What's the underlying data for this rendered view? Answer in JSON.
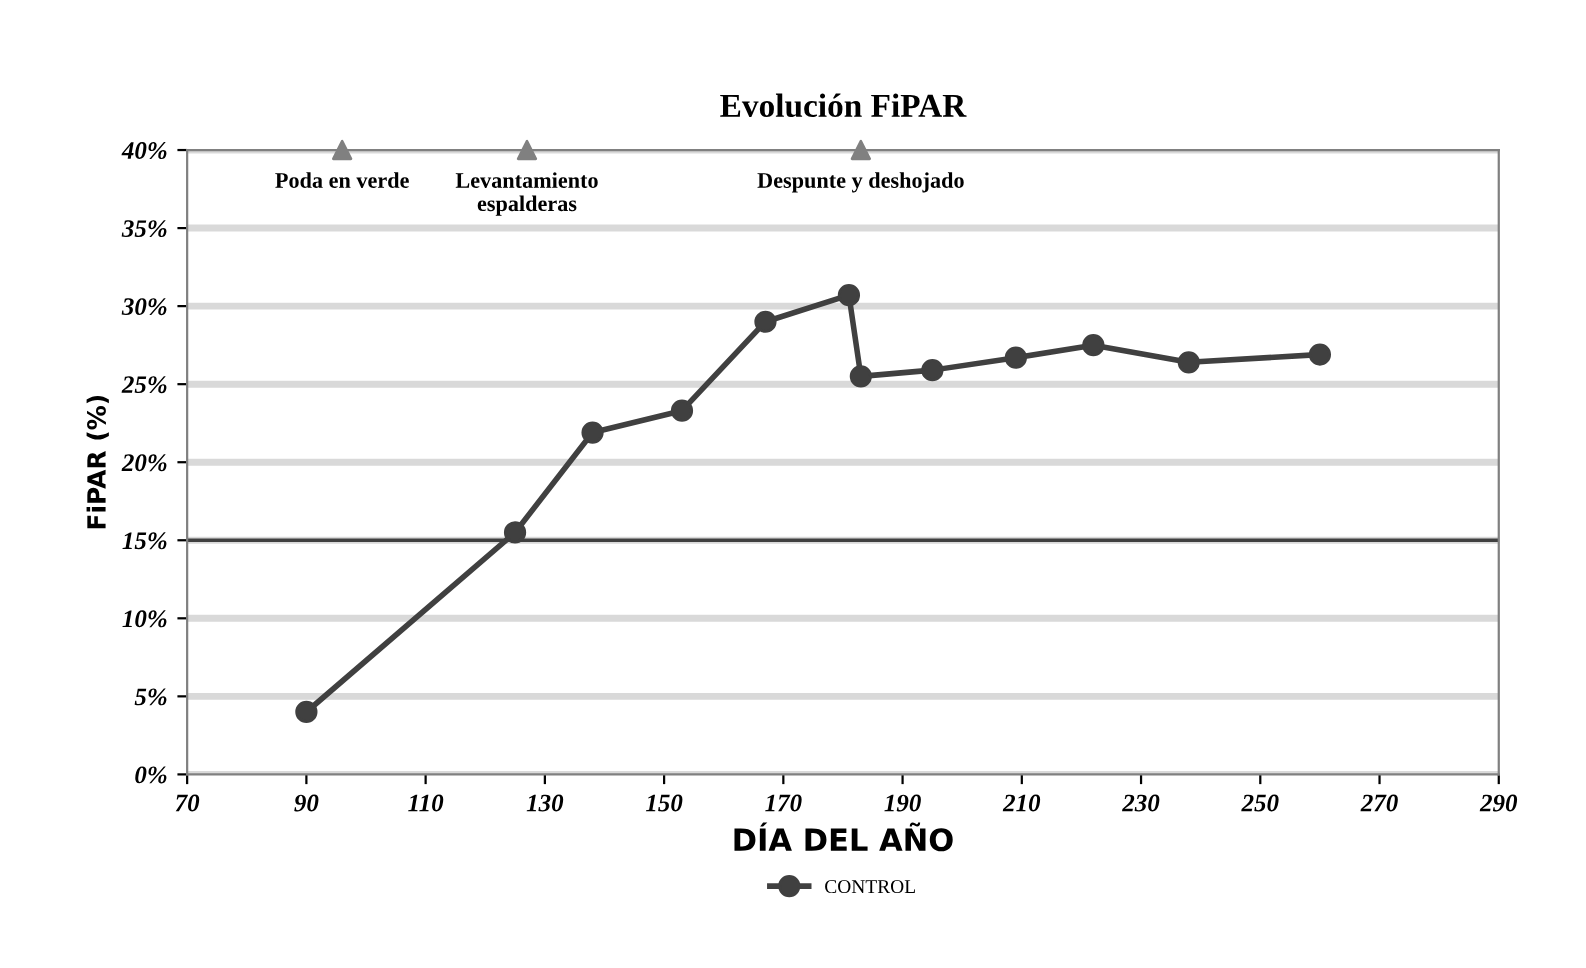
{
  "chart_data": {
    "type": "line",
    "title": "Evolución FiPAR",
    "xlabel": "DÍA DEL AÑO",
    "ylabel": "FiPAR (%)",
    "x": [
      90,
      125,
      138,
      153,
      167,
      181,
      183,
      195,
      209,
      222,
      238,
      260
    ],
    "series": [
      {
        "name": "CONTROL",
        "color": "#404040",
        "marker": "circle",
        "values": [
          4.0,
          15.5,
          21.9,
          23.3,
          29.0,
          30.7,
          25.5,
          25.9,
          26.7,
          27.5,
          26.4,
          26.9
        ]
      },
      {
        "type": "scatter",
        "color": "#808080",
        "marker": "triangle",
        "x": [
          96,
          127,
          183
        ],
        "values": [
          40,
          40,
          40
        ]
      }
    ],
    "annotations": [
      {
        "text": "Poda en verde",
        "x": 96,
        "y": 40
      },
      {
        "text": "Levantamiento\nespalderas",
        "x": 127,
        "y": 40
      },
      {
        "text": "Despunte y deshojado",
        "x": 183,
        "y": 40
      }
    ],
    "ref_lines": [
      {
        "axis": "y",
        "value": 15,
        "color": "#404040"
      }
    ],
    "xlim": [
      70,
      290
    ],
    "xticks": [
      70,
      90,
      110,
      130,
      150,
      170,
      190,
      210,
      230,
      250,
      270,
      290
    ],
    "ylim": [
      0,
      40
    ],
    "yticks": [
      {
        "value": 0,
        "label": "0%"
      },
      {
        "value": 5,
        "label": "5%"
      },
      {
        "value": 10,
        "label": "10%"
      },
      {
        "value": 15,
        "label": "15%"
      },
      {
        "value": 20,
        "label": "20%"
      },
      {
        "value": 25,
        "label": "25%"
      },
      {
        "value": 30,
        "label": "30%"
      },
      {
        "value": 35,
        "label": "35%"
      },
      {
        "value": 40,
        "label": "40%"
      }
    ],
    "grid": "y",
    "legend": "bottom"
  }
}
